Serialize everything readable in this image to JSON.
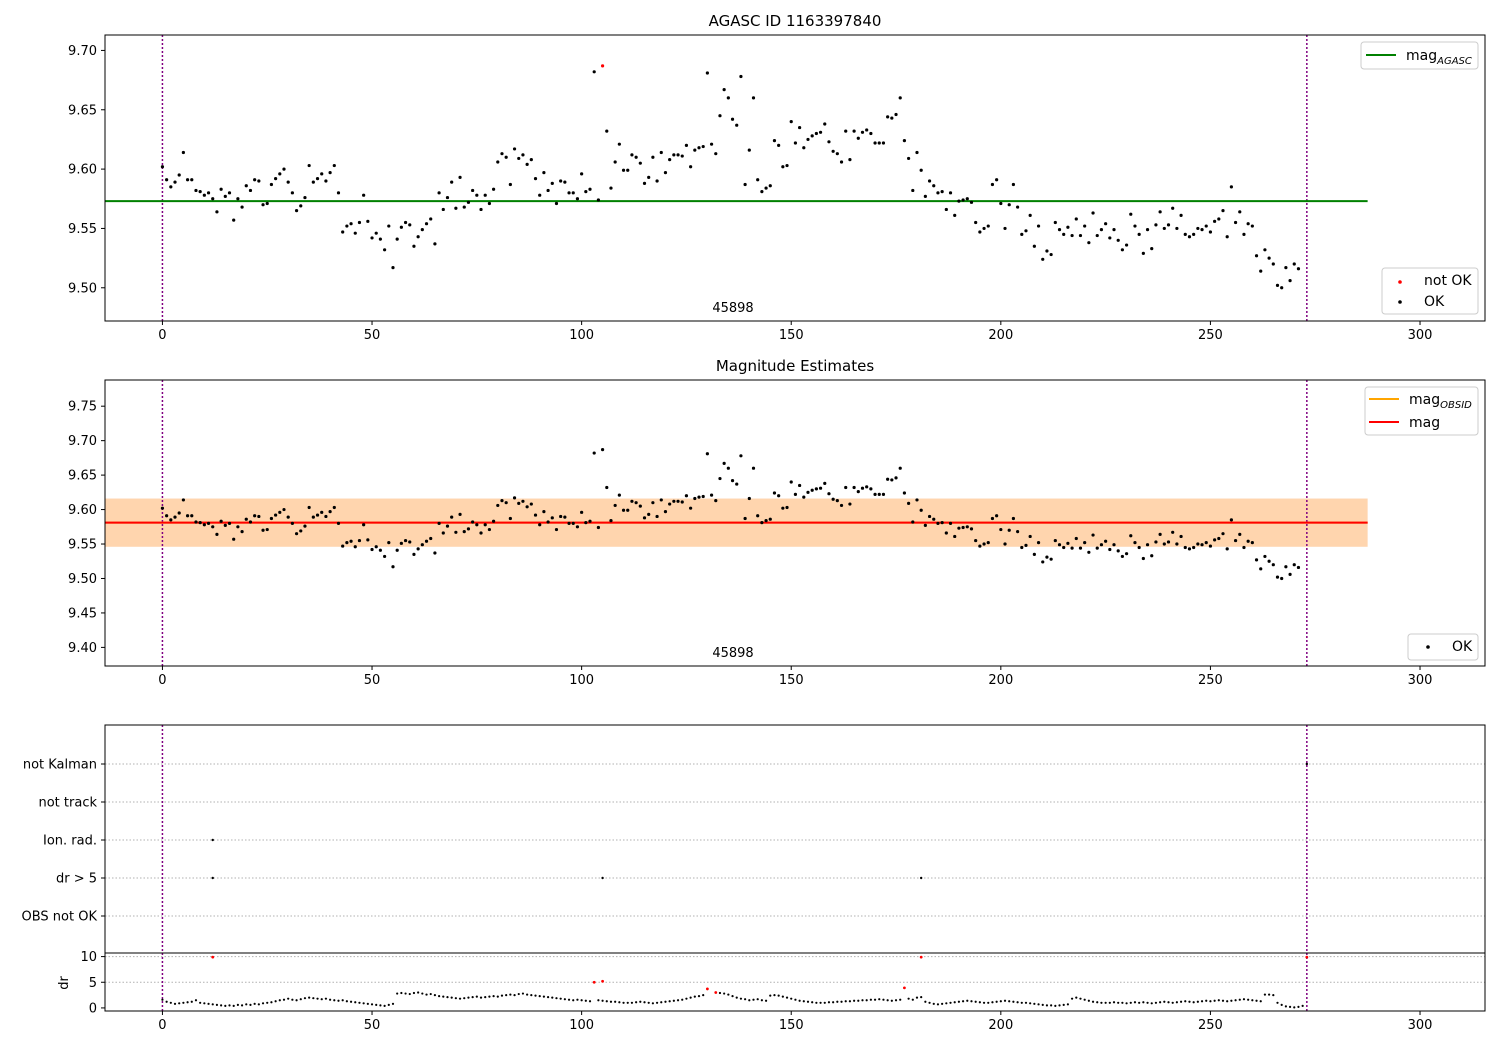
{
  "chart_data": [
    {
      "type": "scatter",
      "title": "AGASC ID 1163397840",
      "annotation": "45898",
      "xlim": [
        -13.7,
        315.5
      ],
      "ylim": [
        9.472,
        9.713
      ],
      "xticks": [
        0,
        50,
        100,
        150,
        200,
        250,
        300
      ],
      "yticks": [
        9.5,
        9.55,
        9.6,
        9.65,
        9.7
      ],
      "vlines": [
        0,
        273
      ],
      "hline": {
        "value": 9.573,
        "x_range": [
          -13.7,
          287.5
        ],
        "color": "#008000",
        "label": "mag",
        "label_sub": "AGASC"
      },
      "legend_top": "top-right",
      "legend_bottom": {
        "placement": "bottom-right",
        "entries": [
          {
            "label": "not OK",
            "color": "#ff0000"
          },
          {
            "label": "OK",
            "color": "#000000"
          }
        ]
      },
      "series": [
        {
          "name": "OK",
          "color": "#000000",
          "y": [
            9.602,
            9.591,
            9.585,
            9.589,
            9.595,
            9.614,
            9.591,
            9.591,
            9.582,
            9.581,
            9.578,
            9.58,
            9.575,
            9.564,
            9.583,
            9.577,
            9.58,
            9.557,
            9.575,
            9.568,
            9.586,
            9.582,
            9.591,
            9.59,
            9.57,
            9.571,
            9.587,
            9.592,
            9.596,
            9.6,
            9.589,
            9.58,
            9.565,
            9.569,
            9.576,
            9.603,
            9.589,
            9.592,
            9.596,
            9.59,
            9.597,
            9.603,
            9.58,
            9.547,
            9.552,
            9.554,
            9.546,
            9.555,
            9.578,
            9.556,
            9.542,
            9.546,
            9.541,
            9.532,
            9.552,
            9.517,
            9.541,
            9.551,
            9.555,
            9.553,
            9.535,
            9.543,
            9.549,
            9.554,
            9.558,
            9.537,
            9.58,
            9.566,
            9.576,
            9.589,
            9.567,
            9.593,
            9.568,
            9.572,
            9.582,
            9.578,
            9.566,
            9.578,
            9.571,
            9.583,
            9.606,
            9.613,
            9.61,
            9.587,
            9.617,
            9.609,
            9.612,
            9.604,
            9.608,
            9.592,
            9.578,
            9.597,
            9.582,
            9.588,
            9.571,
            9.59,
            9.589,
            9.58,
            9.58,
            9.575,
            9.596,
            9.581,
            9.583,
            9.682,
            9.574,
            9.687,
            9.632,
            9.584,
            9.606,
            9.621,
            9.599,
            9.599,
            9.612,
            9.61,
            9.605,
            9.588,
            9.593,
            9.61,
            9.59,
            9.614,
            9.597,
            9.608,
            9.612,
            9.612,
            9.611,
            9.62,
            9.602,
            9.616,
            9.618,
            9.619,
            9.681,
            9.621,
            9.613,
            9.645,
            9.667,
            9.66,
            9.642,
            9.637,
            9.678,
            9.587,
            9.616,
            9.66,
            9.591,
            9.581,
            9.584,
            9.586,
            9.624,
            9.62,
            9.602,
            9.603,
            9.64,
            9.622,
            9.635,
            9.618,
            9.625,
            9.628,
            9.63,
            9.631,
            9.638,
            9.623,
            9.615,
            9.613,
            9.606,
            9.632,
            9.608,
            9.632,
            9.626,
            9.631,
            9.633,
            9.63,
            9.622,
            9.622,
            9.622,
            9.644,
            9.643,
            9.646,
            9.66,
            9.624,
            9.609,
            9.582,
            9.614,
            9.599,
            9.577,
            9.59,
            9.586,
            9.58,
            9.581,
            9.566,
            9.58,
            9.561,
            9.573,
            9.574,
            9.575,
            9.572,
            9.555,
            9.547,
            9.55,
            9.552,
            9.587,
            9.591,
            9.571,
            9.55,
            9.57,
            9.587,
            9.568,
            9.545,
            9.548,
            9.561,
            9.535,
            9.552,
            9.524,
            9.531,
            9.528,
            9.555,
            9.549,
            9.545,
            9.551,
            9.544,
            9.558,
            9.544,
            9.552,
            9.538,
            9.563,
            9.544,
            9.549,
            9.554,
            9.542,
            9.549,
            9.54,
            9.532,
            9.536,
            9.562,
            9.552,
            9.545,
            9.529,
            9.549,
            9.533,
            9.553,
            9.564,
            9.55,
            9.553,
            9.567,
            9.55,
            9.561,
            9.545,
            9.543,
            9.545,
            9.55,
            9.549,
            9.552,
            9.547,
            9.556,
            9.558,
            9.565,
            9.543,
            9.585,
            9.555,
            9.564,
            9.545,
            9.554,
            9.552,
            9.527,
            9.514,
            9.532,
            9.525,
            9.52,
            9.502,
            9.5,
            9.517,
            9.506,
            9.52,
            9.516
          ]
        },
        {
          "name": "not OK",
          "color": "#ff0000",
          "points": [
            {
              "x": 105,
              "y": 9.687
            }
          ]
        }
      ]
    },
    {
      "type": "scatter",
      "title": "Magnitude Estimates",
      "annotation": "45898",
      "xlim": [
        -13.7,
        315.5
      ],
      "ylim": [
        9.373,
        9.788
      ],
      "xticks": [
        0,
        50,
        100,
        150,
        200,
        250,
        300
      ],
      "yticks": [
        9.4,
        9.45,
        9.5,
        9.55,
        9.6,
        9.65,
        9.7,
        9.75
      ],
      "vlines": [
        0,
        273
      ],
      "band": {
        "lower": 9.546,
        "upper": 9.616,
        "x_range": [
          -13.7,
          287.5
        ]
      },
      "lines": [
        {
          "label": "mag",
          "label_sub": "OBSID",
          "color": "#ffa500",
          "value": 9.581
        },
        {
          "label": "mag",
          "label_sub": "",
          "color": "#ff0000",
          "value": 9.581
        }
      ],
      "legend_top": "top-right",
      "legend_bottom": {
        "placement": "bottom-right",
        "entries": [
          {
            "label": "OK",
            "color": "#000000"
          }
        ]
      },
      "series_ref": "same OK points as first panel"
    },
    {
      "type": "scatter",
      "title": "",
      "xlim": [
        -13.7,
        315.5
      ],
      "categories": [
        "OBS not OK",
        "dr > 5",
        "Ion. rad.",
        "not track",
        "not Kalman"
      ],
      "flags": [
        {
          "category": "not Kalman",
          "x": [
            273
          ]
        },
        {
          "category": "Ion. rad.",
          "x": [
            12
          ]
        },
        {
          "category": "dr > 5",
          "x": [
            12,
            105,
            181
          ]
        }
      ],
      "vlines": [
        0,
        273
      ]
    },
    {
      "type": "scatter",
      "title": "",
      "ylabel": "dr",
      "xlim": [
        -13.7,
        315.5
      ],
      "ylim": [
        -0.6,
        10.7
      ],
      "xticks": [
        0,
        50,
        100,
        150,
        200,
        250,
        300
      ],
      "yticks": [
        0,
        5,
        10
      ],
      "vlines": [
        0,
        273
      ],
      "red_points": [
        {
          "x": 12,
          "y": 9.9
        },
        {
          "x": 103,
          "y": 5.0
        },
        {
          "x": 105,
          "y": 5.2
        },
        {
          "x": 130,
          "y": 3.7
        },
        {
          "x": 132,
          "y": 3.0
        },
        {
          "x": 177,
          "y": 3.9
        },
        {
          "x": 181,
          "y": 9.9
        },
        {
          "x": 273,
          "y": 9.9
        }
      ],
      "dr_segments": [
        {
          "from": 0,
          "to": 8,
          "y": [
            1.6,
            1.2,
            1.0,
            0.8,
            0.9,
            1.0,
            1.1,
            1.2,
            1.5
          ]
        },
        {
          "from": 9,
          "to": 12,
          "y": [
            1.0,
            0.9,
            0.8,
            0.7
          ]
        },
        {
          "from": 13,
          "to": 30,
          "y": [
            0.6,
            0.5,
            0.4,
            0.5,
            0.4,
            0.6,
            0.5,
            0.7,
            0.6,
            0.8,
            0.7,
            0.9,
            1.0,
            1.1,
            1.3,
            1.5,
            1.6,
            1.8
          ]
        },
        {
          "from": 31,
          "to": 55,
          "y": [
            1.6,
            1.5,
            1.7,
            1.9,
            2.0,
            1.9,
            1.8,
            1.7,
            1.8,
            1.6,
            1.5,
            1.4,
            1.5,
            1.3,
            1.2,
            1.1,
            1.0,
            0.9,
            0.8,
            0.7,
            0.6,
            0.5,
            0.4,
            0.6,
            0.8
          ]
        },
        {
          "from": 56,
          "to": 80,
          "y": [
            2.8,
            2.9,
            2.8,
            2.7,
            2.9,
            3.0,
            2.8,
            2.6,
            2.7,
            2.5,
            2.3,
            2.2,
            2.1,
            2.0,
            1.9,
            1.8,
            1.9,
            2.0,
            2.1,
            2.2,
            2.0,
            2.1,
            2.2,
            2.3,
            2.2
          ]
        },
        {
          "from": 81,
          "to": 102,
          "y": [
            2.4,
            2.5,
            2.6,
            2.5,
            2.7,
            2.8,
            2.6,
            2.5,
            2.4,
            2.3,
            2.2,
            2.1,
            2.0,
            1.9,
            1.8,
            1.7,
            1.6,
            1.5,
            1.6,
            1.5,
            1.4,
            1.3
          ]
        },
        {
          "from": 104,
          "to": 129,
          "y": [
            1.5,
            1.4,
            1.3,
            1.2,
            1.2,
            1.1,
            1.0,
            1.0,
            1.0,
            1.1,
            1.2,
            1.1,
            1.0,
            0.9,
            1.0,
            1.1,
            1.2,
            1.3,
            1.4,
            1.5,
            1.6,
            1.8,
            2.0,
            2.2,
            2.3,
            2.5
          ]
        },
        {
          "from": 133,
          "to": 176,
          "y": [
            2.9,
            2.8,
            2.6,
            2.3,
            2.0,
            1.8,
            1.7,
            1.5,
            1.6,
            1.7,
            1.5,
            1.4,
            2.4,
            2.5,
            2.4,
            2.2,
            2.0,
            1.8,
            1.6,
            1.4,
            1.3,
            1.2,
            1.1,
            1.0,
            1.0,
            1.0,
            1.1,
            1.1,
            1.2,
            1.2,
            1.3,
            1.3,
            1.4,
            1.4,
            1.5,
            1.5,
            1.6,
            1.6,
            1.7,
            1.6,
            1.5,
            1.4,
            1.5,
            1.6
          ]
        },
        {
          "from": 178,
          "to": 216,
          "y": [
            1.8,
            1.6,
            2.0,
            2.1,
            1.2,
            1.0,
            0.8,
            0.7,
            0.8,
            0.9,
            1.0,
            1.1,
            1.2,
            1.3,
            1.4,
            1.3,
            1.2,
            1.1,
            1.0,
            1.0,
            1.1,
            1.2,
            1.3,
            1.4,
            1.3,
            1.2,
            1.1,
            1.0,
            1.0,
            0.9,
            0.8,
            0.7,
            0.6,
            0.5,
            0.5,
            0.4,
            0.5,
            0.6,
            0.7
          ]
        },
        {
          "from": 217,
          "to": 262,
          "y": [
            1.8,
            2.0,
            1.8,
            1.6,
            1.4,
            1.2,
            1.1,
            1.0,
            1.0,
            1.0,
            1.1,
            1.0,
            1.0,
            0.9,
            1.0,
            1.1,
            1.0,
            1.1,
            1.0,
            0.9,
            1.0,
            1.1,
            1.2,
            1.1,
            1.0,
            1.1,
            1.2,
            1.3,
            1.2,
            1.1,
            1.2,
            1.3,
            1.4,
            1.3,
            1.4,
            1.5,
            1.4,
            1.3,
            1.4,
            1.5,
            1.6,
            1.7,
            1.6,
            1.5,
            1.4,
            1.3
          ]
        },
        {
          "from": 263,
          "to": 272,
          "y": [
            2.6,
            2.6,
            2.5,
            1.0,
            0.6,
            0.3,
            0.2,
            0.1,
            0.2,
            0.4
          ]
        }
      ]
    }
  ]
}
